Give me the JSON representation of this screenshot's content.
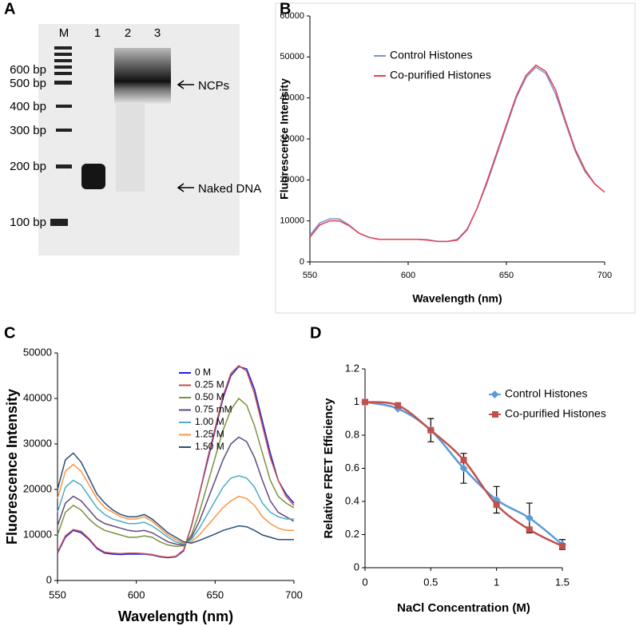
{
  "gel": {
    "panel_label": "A",
    "lane_labels": [
      "M",
      "1",
      "2",
      "3"
    ],
    "marker_labels": [
      "600 bp",
      "500 bp",
      "400 bp",
      "300 bp",
      "200 bp",
      "100 bp"
    ],
    "annotations": [
      "NCPs",
      "Naked DNA"
    ]
  },
  "chart_data": [
    {
      "type": "line",
      "panel_label": "B",
      "xlabel": "Wavelength (nm)",
      "ylabel": "Fluorescence Intensity",
      "x": [
        550,
        555,
        560,
        565,
        570,
        575,
        580,
        585,
        590,
        595,
        600,
        605,
        610,
        615,
        620,
        625,
        630,
        635,
        640,
        645,
        650,
        655,
        660,
        665,
        670,
        675,
        680,
        685,
        690,
        695,
        700
      ],
      "xlim": [
        550,
        700
      ],
      "xticks": [
        550,
        600,
        650,
        700
      ],
      "ylim": [
        0,
        60000
      ],
      "yticks": [
        0,
        10000,
        20000,
        30000,
        40000,
        50000,
        60000
      ],
      "legend": "upper left",
      "series": [
        {
          "name": "Control Histones",
          "color": "#7f8fd0",
          "values": [
            6500,
            9500,
            10500,
            10500,
            9000,
            7000,
            6000,
            5500,
            5500,
            5500,
            5500,
            5500,
            5400,
            5000,
            5000,
            5500,
            8000,
            13000,
            19000,
            26000,
            33000,
            40000,
            45000,
            47500,
            46000,
            41000,
            34000,
            27000,
            22000,
            19000,
            17000
          ]
        },
        {
          "name": "Co-purified Histones",
          "color": "#e04050",
          "values": [
            6000,
            9000,
            10000,
            10000,
            8800,
            7000,
            6000,
            5500,
            5500,
            5500,
            5500,
            5500,
            5300,
            5000,
            5000,
            5300,
            7800,
            13000,
            19500,
            26500,
            33500,
            40500,
            45500,
            48000,
            46500,
            42000,
            34500,
            27500,
            22500,
            19000,
            17000
          ]
        }
      ]
    },
    {
      "type": "line",
      "panel_label": "C",
      "xlabel": "Wavelength (nm)",
      "ylabel": "Fluorescence Intensity",
      "x": [
        550,
        555,
        560,
        565,
        570,
        575,
        580,
        585,
        590,
        595,
        600,
        605,
        610,
        615,
        620,
        625,
        630,
        635,
        640,
        645,
        650,
        655,
        660,
        665,
        670,
        675,
        680,
        685,
        690,
        695,
        700
      ],
      "xlim": [
        550,
        700
      ],
      "xticks": [
        550,
        600,
        650,
        700
      ],
      "ylim": [
        0,
        50000
      ],
      "yticks": [
        0,
        10000,
        20000,
        30000,
        40000,
        50000
      ],
      "legend": "upper center",
      "series": [
        {
          "name": "0 M",
          "color": "#2020e0",
          "values": [
            6000,
            9500,
            11000,
            10500,
            9000,
            7000,
            6000,
            5800,
            5700,
            5800,
            5800,
            5800,
            5600,
            5200,
            5000,
            5200,
            6500,
            12000,
            19000,
            26000,
            33000,
            40000,
            45000,
            47000,
            46500,
            42000,
            35000,
            28000,
            22000,
            19000,
            17000
          ]
        },
        {
          "name": "0.25 M",
          "color": "#c0504d",
          "values": [
            6200,
            9800,
            11200,
            10800,
            9200,
            7200,
            6200,
            6000,
            5900,
            6000,
            6000,
            5900,
            5700,
            5300,
            5100,
            5300,
            6700,
            12000,
            19000,
            26500,
            33500,
            40500,
            45500,
            47200,
            46000,
            41000,
            34000,
            27000,
            22000,
            18500,
            16500
          ]
        },
        {
          "name": "0.50 M",
          "color": "#77933c",
          "values": [
            10000,
            15000,
            16500,
            15500,
            13500,
            12000,
            11000,
            10500,
            10000,
            9500,
            9500,
            9800,
            9500,
            8500,
            7800,
            7500,
            7600,
            10000,
            15000,
            21000,
            27000,
            33000,
            37500,
            40000,
            38500,
            34000,
            28000,
            22000,
            18500,
            17000,
            16000
          ]
        },
        {
          "name": "0.75 mM",
          "color": "#604a7b",
          "values": [
            12000,
            17000,
            18500,
            17500,
            15500,
            13500,
            12500,
            12000,
            11500,
            11000,
            10800,
            11000,
            10500,
            9500,
            8500,
            8000,
            7800,
            9500,
            13000,
            17500,
            22000,
            26500,
            30000,
            31500,
            30500,
            27000,
            22000,
            17500,
            15000,
            14000,
            13000
          ]
        },
        {
          "name": "1.00 M",
          "color": "#4bacc6",
          "values": [
            15000,
            20500,
            22000,
            21000,
            18500,
            16000,
            14500,
            13500,
            13000,
            12500,
            12500,
            12800,
            12000,
            10800,
            9500,
            8500,
            8000,
            9000,
            11500,
            14500,
            17500,
            20500,
            22500,
            23000,
            22500,
            20500,
            17000,
            15000,
            14000,
            13500,
            13500
          ]
        },
        {
          "name": "1.25 M",
          "color": "#f79646",
          "values": [
            18000,
            24000,
            25500,
            24000,
            21000,
            18000,
            16000,
            15000,
            14000,
            13500,
            13500,
            14000,
            13000,
            11500,
            10000,
            9000,
            8200,
            8500,
            10000,
            12000,
            14000,
            16000,
            17500,
            18500,
            18000,
            16500,
            14000,
            12500,
            11500,
            11000,
            11000
          ]
        },
        {
          "name": "1.50 M",
          "color": "#2c4d75",
          "values": [
            20000,
            26500,
            28000,
            26000,
            22500,
            19000,
            17000,
            15500,
            14500,
            14000,
            14000,
            14500,
            13500,
            12000,
            10500,
            9500,
            8500,
            8200,
            8800,
            9500,
            10200,
            11000,
            11500,
            12000,
            11800,
            11000,
            10000,
            9500,
            9000,
            9000,
            9000
          ]
        }
      ]
    },
    {
      "type": "line",
      "panel_label": "D",
      "xlabel": "NaCl Concentration (M)",
      "ylabel": "Relative FRET Efficiency",
      "x": [
        0,
        0.25,
        0.5,
        0.75,
        1,
        1.25,
        1.5
      ],
      "xlim": [
        0,
        1.5
      ],
      "xticks": [
        0,
        0.5,
        1,
        1.5
      ],
      "ylim": [
        0,
        1.2
      ],
      "yticks": [
        0,
        0.2,
        0.4,
        0.6,
        0.8,
        1,
        1.2
      ],
      "legend": "upper right",
      "smooth": true,
      "series": [
        {
          "name": "Control Histones",
          "color": "#5b9bd5",
          "marker": "diamond",
          "values": [
            1,
            0.96,
            0.83,
            0.6,
            0.41,
            0.3,
            0.14
          ],
          "errors": [
            null,
            null,
            0.07,
            0.09,
            0.08,
            0.09,
            0.03
          ]
        },
        {
          "name": "Co-purified Histones",
          "color": "#c0504d",
          "marker": "square",
          "values": [
            1,
            0.98,
            0.83,
            0.65,
            0.38,
            0.23,
            0.13
          ]
        }
      ]
    }
  ]
}
